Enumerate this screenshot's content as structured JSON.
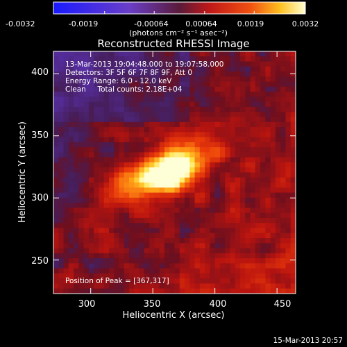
{
  "colors": {
    "background": "#000000",
    "text": "#ffffff",
    "accent_low": "#1a1aff",
    "accent_high": "#ffffd0"
  },
  "colorbar": {
    "ticks": [
      "-0.0032",
      "-0.0019",
      "-0.00064",
      "0.00064",
      "0.0019",
      "0.0032"
    ],
    "tick_values": [
      -0.0032,
      -0.0019,
      -0.00064,
      0.00064,
      0.0019,
      0.0032
    ],
    "range": [
      -0.0032,
      0.0032
    ],
    "unit_label": "(photons cm⁻² s⁻¹ asec⁻²)"
  },
  "chart_data": {
    "type": "heatmap",
    "title": "Reconstructed RHESSI Image",
    "xlabel": "Heliocentric X (arcsec)",
    "ylabel": "Heliocentric Y (arcsec)",
    "xlim": [
      270,
      465
    ],
    "ylim": [
      223,
      418
    ],
    "xticks": [
      300,
      350,
      400,
      450
    ],
    "yticks": [
      250,
      300,
      350,
      400
    ],
    "zlim": [
      -0.0032,
      0.0032
    ],
    "peak": [
      367,
      317
    ],
    "annotations": [
      "13-Mar-2013 19:04:48.000 to 19:07:58.000",
      "Detectors: 3F 5F 6F 7F 8F 9F, Att 0",
      "Energy Range: 6.0 - 12.0 keV",
      "Clean     Total counts: 2.18E+04"
    ],
    "peak_label": "Position of Peak = [367,317]"
  },
  "footer": {
    "date": "15-Mar-2013 20:57"
  }
}
